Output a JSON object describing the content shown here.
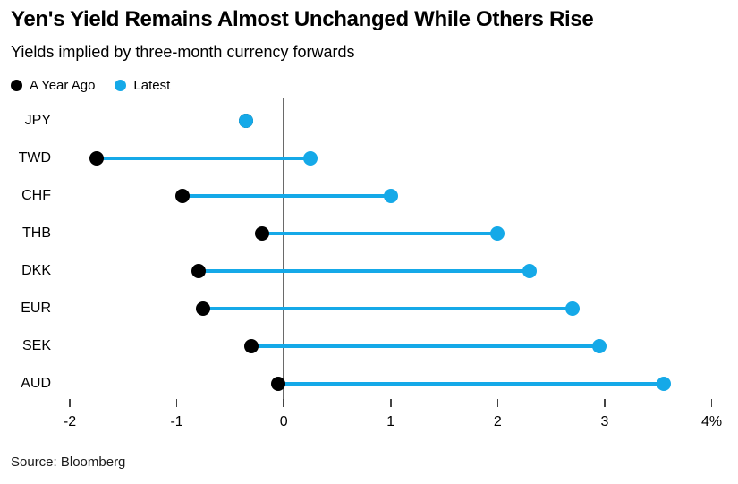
{
  "title": "Yen's Yield Remains Almost Unchanged While Others Rise",
  "subtitle": "Yields implied by three-month currency forwards",
  "legend": {
    "items": [
      {
        "label": "A Year Ago",
        "color": "#000000"
      },
      {
        "label": "Latest",
        "color": "#15A9E8"
      }
    ]
  },
  "source": "Source: Bloomberg",
  "colors": {
    "year_ago": "#000000",
    "latest": "#15A9E8",
    "zero_line": "#6a6a6a",
    "tick": "#444444"
  },
  "chart_data": {
    "type": "scatter",
    "variant": "dumbbell",
    "title": "Yen's Yield Remains Almost Unchanged While Others Rise",
    "subtitle": "Yields implied by three-month currency forwards",
    "categories": [
      "JPY",
      "TWD",
      "CHF",
      "THB",
      "DKK",
      "EUR",
      "SEK",
      "AUD"
    ],
    "series": [
      {
        "name": "A Year Ago",
        "values": [
          -0.35,
          -1.75,
          -0.95,
          -0.2,
          -0.8,
          -0.75,
          -0.3,
          -0.05
        ]
      },
      {
        "name": "Latest",
        "values": [
          -0.35,
          0.25,
          1.0,
          2.0,
          2.3,
          2.7,
          2.95,
          3.55
        ]
      }
    ],
    "xlabel": "",
    "ylabel": "",
    "unit": "%",
    "xlim": [
      -2,
      4
    ],
    "ticks": [
      -2,
      -1,
      0,
      1,
      2,
      3,
      4
    ],
    "tick_labels": [
      "-2",
      "-1",
      "0",
      "1",
      "2",
      "3",
      "4%"
    ],
    "grid": false,
    "zero_line": true,
    "legend_position": "top-left"
  }
}
